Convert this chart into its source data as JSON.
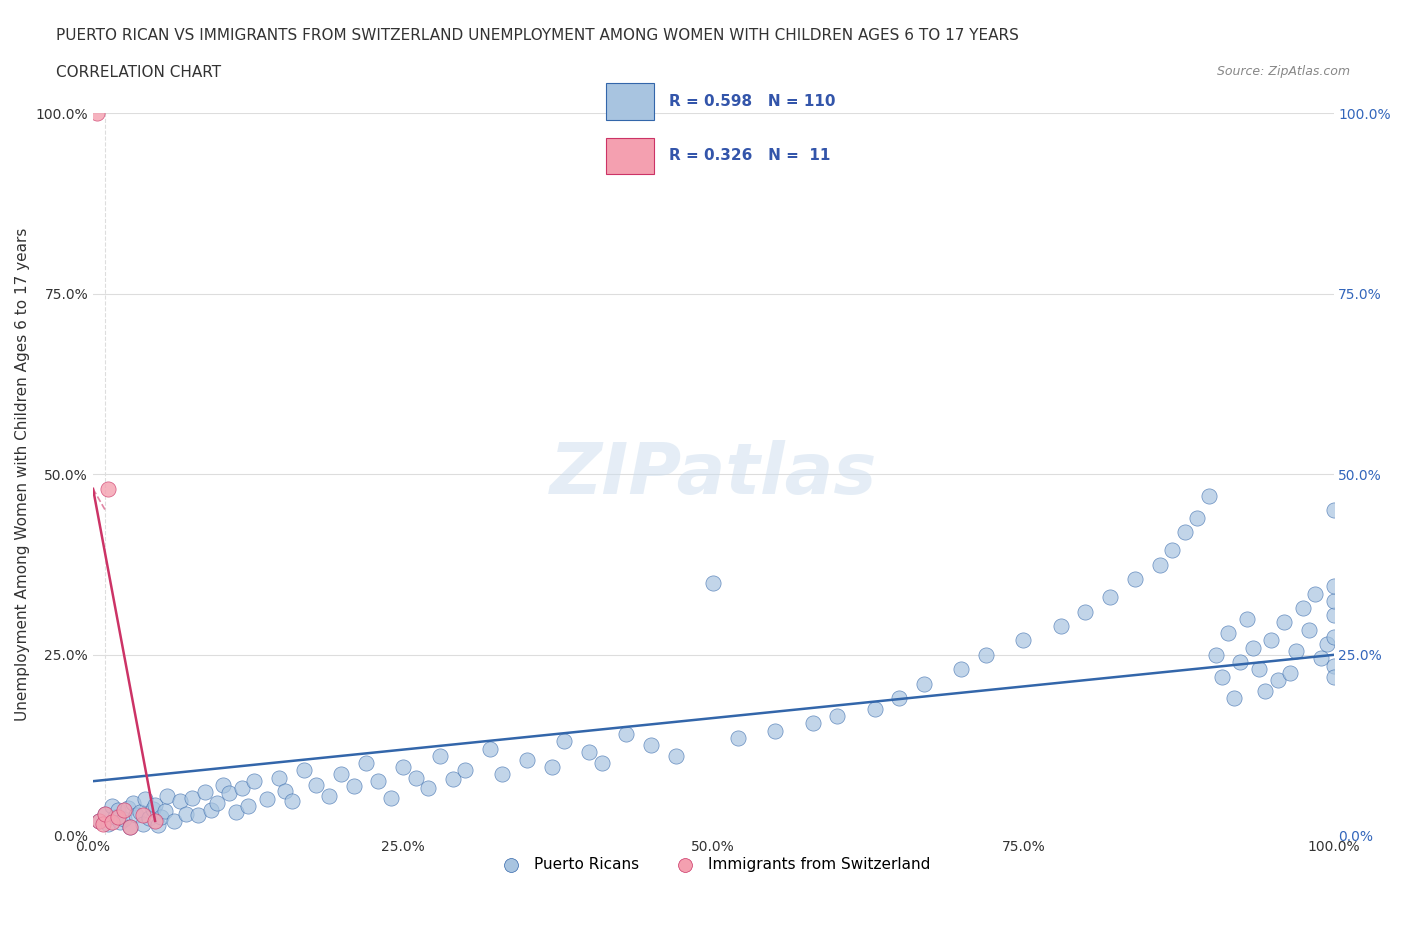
{
  "title_line1": "PUERTO RICAN VS IMMIGRANTS FROM SWITZERLAND UNEMPLOYMENT AMONG WOMEN WITH CHILDREN AGES 6 TO 17 YEARS",
  "title_line2": "CORRELATION CHART",
  "source_text": "Source: ZipAtlas.com",
  "xlabel": "",
  "ylabel": "Unemployment Among Women with Children Ages 6 to 17 years",
  "watermark": "ZIPatlas",
  "blue_R": 0.598,
  "blue_N": 110,
  "pink_R": 0.326,
  "pink_N": 11,
  "blue_color": "#a8c4e0",
  "blue_line_color": "#3366aa",
  "pink_color": "#f4a0b0",
  "pink_line_color": "#cc3366",
  "legend_blue_label": "Puerto Ricans",
  "legend_pink_label": "Immigrants from Switzerland",
  "xlim": [
    0,
    100
  ],
  "ylim": [
    0,
    100
  ],
  "x_ticks": [
    0,
    25,
    50,
    75,
    100
  ],
  "y_ticks": [
    0,
    25,
    50,
    75,
    100
  ],
  "x_tick_labels": [
    "0.0%",
    "25.0%",
    "50.0%",
    "75.0%",
    "100.0%"
  ],
  "y_tick_labels": [
    "0.0%",
    "25.0%",
    "50.0%",
    "75.0%",
    "100.0%"
  ],
  "blue_points_x": [
    0.5,
    1.0,
    1.2,
    1.5,
    1.8,
    2.0,
    2.2,
    2.5,
    2.8,
    3.0,
    3.2,
    3.5,
    3.8,
    4.0,
    4.2,
    4.5,
    4.8,
    5.0,
    5.2,
    5.5,
    5.8,
    6.0,
    6.5,
    7.0,
    7.5,
    8.0,
    8.5,
    9.0,
    9.5,
    10.0,
    10.5,
    11.0,
    11.5,
    12.0,
    12.5,
    13.0,
    14.0,
    15.0,
    15.5,
    16.0,
    17.0,
    18.0,
    19.0,
    20.0,
    21.0,
    22.0,
    23.0,
    24.0,
    25.0,
    26.0,
    27.0,
    28.0,
    29.0,
    30.0,
    32.0,
    33.0,
    35.0,
    37.0,
    38.0,
    40.0,
    41.0,
    43.0,
    45.0,
    47.0,
    50.0,
    52.0,
    55.0,
    58.0,
    60.0,
    63.0,
    65.0,
    67.0,
    70.0,
    72.0,
    75.0,
    78.0,
    80.0,
    82.0,
    84.0,
    86.0,
    87.0,
    88.0,
    89.0,
    90.0,
    90.5,
    91.0,
    91.5,
    92.0,
    92.5,
    93.0,
    93.5,
    94.0,
    94.5,
    95.0,
    95.5,
    96.0,
    96.5,
    97.0,
    97.5,
    98.0,
    98.5,
    99.0,
    99.5,
    100.0,
    100.0,
    100.0,
    100.0,
    100.0,
    100.0,
    100.0
  ],
  "blue_points_y": [
    2.0,
    3.0,
    1.5,
    4.0,
    2.5,
    3.5,
    1.8,
    2.2,
    3.8,
    1.2,
    4.5,
    2.8,
    3.2,
    1.6,
    5.0,
    2.4,
    3.6,
    4.2,
    1.4,
    2.6,
    3.4,
    5.5,
    2.0,
    4.8,
    3.0,
    5.2,
    2.8,
    6.0,
    3.5,
    4.5,
    7.0,
    5.8,
    3.2,
    6.5,
    4.0,
    7.5,
    5.0,
    8.0,
    6.2,
    4.8,
    9.0,
    7.0,
    5.5,
    8.5,
    6.8,
    10.0,
    7.5,
    5.2,
    9.5,
    8.0,
    6.5,
    11.0,
    7.8,
    9.0,
    12.0,
    8.5,
    10.5,
    9.5,
    13.0,
    11.5,
    10.0,
    14.0,
    12.5,
    11.0,
    35.0,
    13.5,
    14.5,
    15.5,
    16.5,
    17.5,
    19.0,
    21.0,
    23.0,
    25.0,
    27.0,
    29.0,
    31.0,
    33.0,
    35.5,
    37.5,
    39.5,
    42.0,
    44.0,
    47.0,
    25.0,
    22.0,
    28.0,
    19.0,
    24.0,
    30.0,
    26.0,
    23.0,
    20.0,
    27.0,
    21.5,
    29.5,
    22.5,
    25.5,
    31.5,
    28.5,
    33.5,
    24.5,
    26.5,
    45.0,
    30.5,
    32.5,
    27.5,
    23.5,
    34.5,
    22.0
  ],
  "pink_points_x": [
    0.3,
    0.5,
    0.8,
    1.0,
    1.2,
    1.5,
    2.0,
    2.5,
    3.0,
    4.0,
    5.0
  ],
  "pink_points_y": [
    100.0,
    2.0,
    1.5,
    3.0,
    48.0,
    1.8,
    2.5,
    3.5,
    1.2,
    2.8,
    2.0
  ],
  "blue_trend_x0": 0,
  "blue_trend_y0": 7.5,
  "blue_trend_x1": 100,
  "blue_trend_y1": 25.0,
  "pink_trend_x0": 0,
  "pink_trend_y0": 48.0,
  "pink_trend_x1": 5,
  "pink_trend_y1": 2.0
}
